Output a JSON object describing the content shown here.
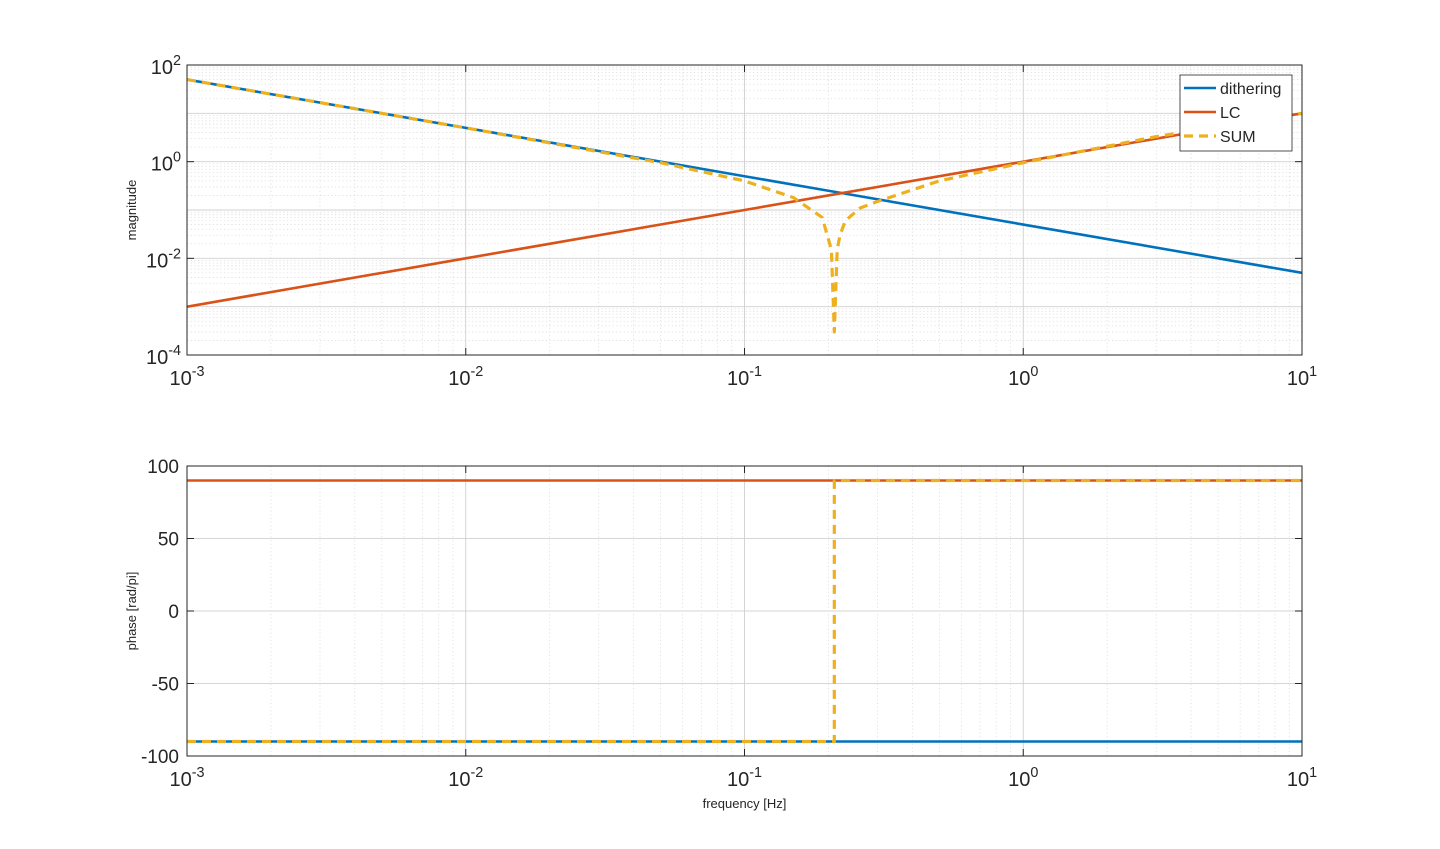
{
  "chart_data": [
    {
      "type": "line",
      "x_scale": "log",
      "y_scale": "log",
      "xlim": [
        0.001,
        10
      ],
      "ylim": [
        0.0001,
        100
      ],
      "x_ticks": [
        0.001,
        0.01,
        0.1,
        1,
        10
      ],
      "x_tick_labels": [
        [
          "10",
          "-3"
        ],
        [
          "10",
          "-2"
        ],
        [
          "10",
          "-1"
        ],
        [
          "10",
          "0"
        ],
        [
          "10",
          "1"
        ]
      ],
      "y_ticks": [
        0.0001,
        0.01,
        1,
        100
      ],
      "y_tick_labels": [
        [
          "10",
          "-4"
        ],
        [
          "10",
          "-2"
        ],
        [
          "10",
          "0"
        ],
        [
          "10",
          "2"
        ]
      ],
      "xlabel": "",
      "ylabel": "magnitude",
      "grid": true,
      "legend": "top-right",
      "series": [
        {
          "name": "dithering",
          "color": "#0072BD",
          "style": "solid",
          "x": [
            0.001,
            0.01,
            0.1,
            0.2,
            1,
            10
          ],
          "y": [
            50,
            5,
            0.5,
            0.25,
            0.05,
            0.005
          ]
        },
        {
          "name": "LC",
          "color": "#D95319",
          "style": "solid",
          "x": [
            0.001,
            0.01,
            0.1,
            0.2,
            1,
            10
          ],
          "y": [
            0.001,
            0.01,
            0.1,
            0.2,
            1,
            10
          ]
        },
        {
          "name": "SUM",
          "color": "#EDB120",
          "style": "dashed",
          "x": [
            0.001,
            0.01,
            0.05,
            0.1,
            0.15,
            0.19,
            0.205,
            0.21,
            0.215,
            0.22,
            0.23,
            0.26,
            0.3,
            0.5,
            1,
            3,
            10
          ],
          "y": [
            50,
            5,
            0.95,
            0.4,
            0.18,
            0.07,
            0.015,
            0.0003,
            0.015,
            0.03,
            0.06,
            0.11,
            0.15,
            0.4,
            0.95,
            3.3,
            10
          ]
        }
      ]
    },
    {
      "type": "line",
      "x_scale": "log",
      "y_scale": "linear",
      "xlim": [
        0.001,
        10
      ],
      "ylim": [
        -100,
        100
      ],
      "x_ticks": [
        0.001,
        0.01,
        0.1,
        1,
        10
      ],
      "x_tick_labels": [
        [
          "10",
          "-3"
        ],
        [
          "10",
          "-2"
        ],
        [
          "10",
          "-1"
        ],
        [
          "10",
          "0"
        ],
        [
          "10",
          "1"
        ]
      ],
      "y_ticks": [
        -100,
        -50,
        0,
        50,
        100
      ],
      "y_tick_labels": [
        "-100",
        "-50",
        "0",
        "50",
        "100"
      ],
      "xlabel": "frequency [Hz]",
      "ylabel": "phase [rad/pi]",
      "grid": true,
      "series": [
        {
          "color": "#0072BD",
          "style": "solid",
          "x": [
            0.001,
            10
          ],
          "y": [
            -90,
            -90
          ]
        },
        {
          "color": "#D95319",
          "style": "solid",
          "x": [
            0.001,
            10
          ],
          "y": [
            90,
            90
          ]
        },
        {
          "color": "#EDB120",
          "style": "dashed",
          "x": [
            0.001,
            0.21,
            0.21,
            10
          ],
          "y": [
            -90,
            -90,
            90,
            90
          ]
        }
      ]
    }
  ]
}
